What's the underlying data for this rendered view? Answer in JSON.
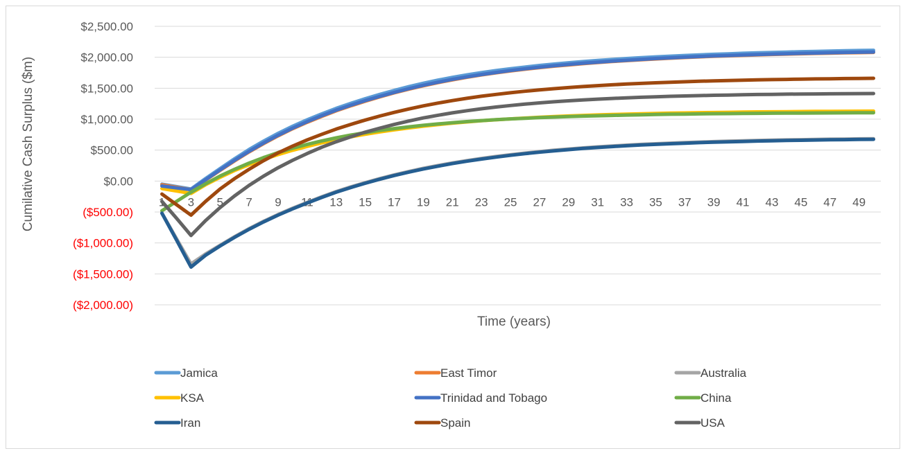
{
  "chart_data": {
    "type": "line",
    "title": "",
    "xlabel": "Time (years)",
    "ylabel": "Cumilative Cash Surplus ($m)",
    "ylim": [
      -2000,
      2500
    ],
    "ytick_values": [
      2500,
      2000,
      1500,
      1000,
      500,
      0,
      -500,
      -1000,
      -1500,
      -2000
    ],
    "ytick_labels": [
      "$2,500.00",
      "$2,000.00",
      "$1,500.00",
      "$1,000.00",
      "$500.00",
      "$0.00",
      "($500.00)",
      "($1,000.00)",
      "($1,500.00)",
      "($2,000.00)"
    ],
    "negative_tick_color": "#ff0000",
    "positive_tick_color": "#595959",
    "xtick_labels": [
      "1",
      "3",
      "5",
      "7",
      "9",
      "11",
      "13",
      "15",
      "17",
      "19",
      "21",
      "23",
      "25",
      "27",
      "29",
      "31",
      "33",
      "35",
      "37",
      "39",
      "41",
      "43",
      "45",
      "47",
      "49"
    ],
    "x_count": 50,
    "grid": true,
    "legend_position": "bottom",
    "series": [
      {
        "name": "Jamica",
        "color": "#5b9bd5",
        "values": [
          -50,
          -90,
          -130,
          40,
          200,
          360,
          510,
          645,
          770,
          885,
          990,
          1085,
          1175,
          1255,
          1330,
          1400,
          1465,
          1525,
          1580,
          1630,
          1675,
          1715,
          1752,
          1785,
          1815,
          1842,
          1867,
          1890,
          1911,
          1930,
          1948,
          1964,
          1979,
          1993,
          2006,
          2018,
          2029,
          2039,
          2048,
          2056,
          2064,
          2071,
          2078,
          2084,
          2090,
          2095,
          2100,
          2105,
          2109,
          2113
        ]
      },
      {
        "name": "East Timor",
        "color": "#ed7d31",
        "values": [
          -60,
          -100,
          -140,
          15,
          170,
          325,
          470,
          605,
          730,
          845,
          950,
          1045,
          1135,
          1215,
          1290,
          1360,
          1425,
          1485,
          1540,
          1590,
          1635,
          1677,
          1714,
          1748,
          1779,
          1807,
          1833,
          1856,
          1877,
          1897,
          1915,
          1931,
          1946,
          1960,
          1973,
          1985,
          1996,
          2006,
          2015,
          2023,
          2031,
          2038,
          2045,
          2051,
          2057,
          2062,
          2067,
          2071,
          2075,
          2079
        ]
      },
      {
        "name": "Australia",
        "color": "#a5a5a5",
        "values": [
          -520,
          -930,
          -1340,
          -1180,
          -1040,
          -900,
          -770,
          -650,
          -540,
          -440,
          -345,
          -255,
          -170,
          -95,
          -25,
          40,
          100,
          155,
          205,
          250,
          292,
          330,
          365,
          397,
          426,
          452,
          476,
          498,
          518,
          536,
          552,
          567,
          580,
          592,
          603,
          613,
          622,
          630,
          637,
          644,
          650,
          656,
          661,
          665,
          669,
          673,
          676,
          679,
          682,
          684
        ]
      },
      {
        "name": "KSA",
        "color": "#ffc000",
        "values": [
          -120,
          -160,
          -200,
          -60,
          60,
          170,
          265,
          350,
          428,
          497,
          560,
          617,
          668,
          714,
          756,
          794,
          828,
          859,
          887,
          912,
          935,
          955,
          974,
          990,
          1005,
          1018,
          1030,
          1041,
          1051,
          1060,
          1068,
          1075,
          1081,
          1087,
          1092,
          1097,
          1101,
          1105,
          1108,
          1111,
          1114,
          1117,
          1119,
          1121,
          1123,
          1125,
          1126,
          1128,
          1129,
          1130
        ]
      },
      {
        "name": "Trinidad and Tobago",
        "color": "#4472c4",
        "values": [
          -80,
          -110,
          -140,
          20,
          180,
          335,
          480,
          615,
          740,
          855,
          960,
          1055,
          1145,
          1225,
          1300,
          1368,
          1432,
          1492,
          1547,
          1597,
          1642,
          1684,
          1721,
          1755,
          1786,
          1814,
          1840,
          1863,
          1884,
          1903,
          1921,
          1937,
          1952,
          1966,
          1979,
          1991,
          2002,
          2012,
          2021,
          2029,
          2037,
          2044,
          2051,
          2057,
          2063,
          2068,
          2073,
          2077,
          2081,
          2085
        ]
      },
      {
        "name": "China",
        "color": "#70ad47",
        "values": [
          -480,
          -330,
          -180,
          -45,
          80,
          190,
          290,
          380,
          460,
          530,
          592,
          648,
          698,
          742,
          782,
          817,
          848,
          876,
          901,
          923,
          943,
          961,
          977,
          991,
          1004,
          1015,
          1025,
          1034,
          1042,
          1049,
          1055,
          1061,
          1066,
          1071,
          1075,
          1079,
          1082,
          1085,
          1088,
          1090,
          1092,
          1094,
          1096,
          1098,
          1099,
          1100,
          1101,
          1102,
          1103,
          1104
        ]
      },
      {
        "name": "Iran",
        "color": "#255e91",
        "values": [
          -520,
          -950,
          -1390,
          -1200,
          -1050,
          -910,
          -780,
          -660,
          -550,
          -450,
          -355,
          -265,
          -180,
          -105,
          -35,
          30,
          90,
          145,
          195,
          240,
          282,
          320,
          355,
          387,
          416,
          442,
          466,
          488,
          508,
          526,
          542,
          557,
          570,
          582,
          593,
          603,
          612,
          620,
          627,
          634,
          640,
          646,
          651,
          655,
          659,
          663,
          666,
          669,
          672,
          674
        ]
      },
      {
        "name": "Spain",
        "color": "#9e480e",
        "values": [
          -210,
          -380,
          -550,
          -330,
          -130,
          40,
          190,
          330,
          455,
          565,
          665,
          755,
          840,
          915,
          985,
          1050,
          1110,
          1165,
          1215,
          1260,
          1300,
          1337,
          1370,
          1400,
          1427,
          1451,
          1473,
          1493,
          1511,
          1527,
          1542,
          1555,
          1567,
          1578,
          1588,
          1597,
          1605,
          1612,
          1619,
          1625,
          1630,
          1635,
          1639,
          1643,
          1647,
          1650,
          1653,
          1656,
          1658,
          1660
        ]
      },
      {
        "name": "USA",
        "color": "#636363",
        "values": [
          -330,
          -600,
          -880,
          -640,
          -430,
          -240,
          -70,
          80,
          215,
          335,
          445,
          545,
          635,
          715,
          790,
          855,
          915,
          970,
          1020,
          1063,
          1102,
          1137,
          1168,
          1196,
          1221,
          1243,
          1263,
          1281,
          1297,
          1311,
          1324,
          1335,
          1345,
          1354,
          1362,
          1369,
          1375,
          1381,
          1386,
          1390,
          1394,
          1398,
          1401,
          1404,
          1406,
          1408,
          1410,
          1412,
          1413,
          1414
        ]
      }
    ]
  }
}
